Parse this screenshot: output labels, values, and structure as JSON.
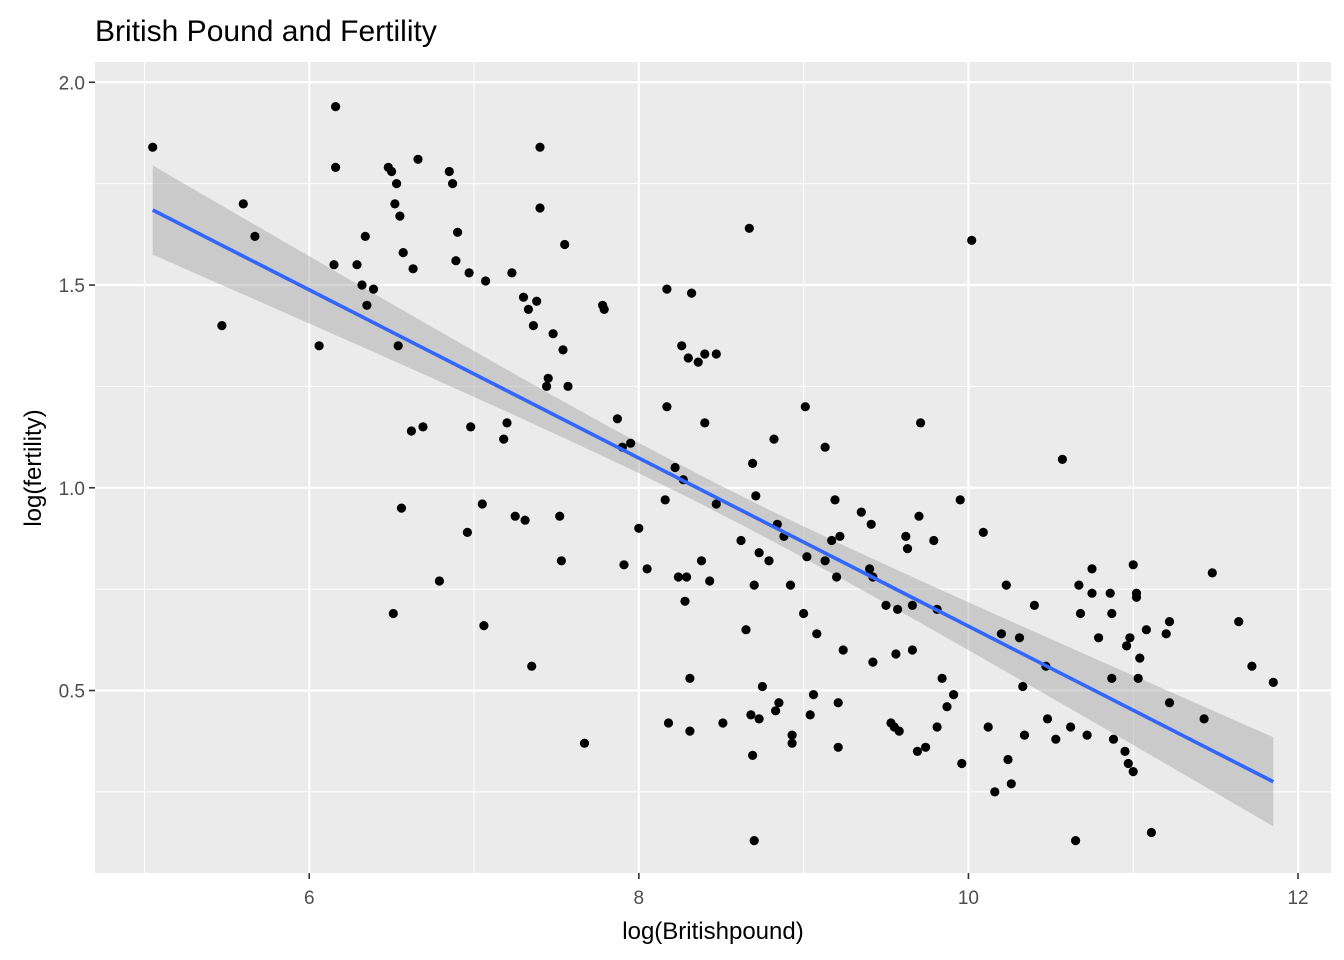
{
  "chart_data": {
    "type": "scatter",
    "title": "British Pound and Fertility",
    "xlabel": "log(Britishpound)",
    "ylabel": "log(fertility)",
    "xlim": [
      4.7,
      12.2
    ],
    "ylim": [
      0.05,
      2.05
    ],
    "x_ticks": [
      6,
      8,
      10,
      12
    ],
    "x_tick_labels": [
      "6",
      "8",
      "10",
      "12"
    ],
    "y_ticks": [
      0.5,
      1.0,
      1.5,
      2.0
    ],
    "y_tick_labels": [
      "0.5",
      "1.0",
      "1.5",
      "2.0"
    ],
    "grid": true,
    "legend": "none",
    "colors": {
      "panel_background": "#EBEBEB",
      "grid": "#FFFFFF",
      "points": "#000000",
      "fit_line": "#3366FF",
      "confidence_band": "#999999"
    },
    "series": [
      {
        "points": [
          [
            5.05,
            1.84
          ],
          [
            5.47,
            1.4
          ],
          [
            5.6,
            1.7
          ],
          [
            5.67,
            1.62
          ],
          [
            6.06,
            1.35
          ],
          [
            6.15,
            1.55
          ],
          [
            6.16,
            1.94
          ],
          [
            6.16,
            1.79
          ],
          [
            6.29,
            1.55
          ],
          [
            6.32,
            1.5
          ],
          [
            6.34,
            1.62
          ],
          [
            6.35,
            1.45
          ],
          [
            6.39,
            1.49
          ],
          [
            6.48,
            1.79
          ],
          [
            6.5,
            1.78
          ],
          [
            6.51,
            0.69
          ],
          [
            6.52,
            1.7
          ],
          [
            6.53,
            1.75
          ],
          [
            6.54,
            1.35
          ],
          [
            6.55,
            1.67
          ],
          [
            6.56,
            0.95
          ],
          [
            6.57,
            1.58
          ],
          [
            6.62,
            1.14
          ],
          [
            6.63,
            1.54
          ],
          [
            6.66,
            1.81
          ],
          [
            6.69,
            1.15
          ],
          [
            6.79,
            0.77
          ],
          [
            6.85,
            1.78
          ],
          [
            6.87,
            1.75
          ],
          [
            6.89,
            1.56
          ],
          [
            6.9,
            1.63
          ],
          [
            6.96,
            0.89
          ],
          [
            6.97,
            1.53
          ],
          [
            6.98,
            1.15
          ],
          [
            7.05,
            0.96
          ],
          [
            7.06,
            0.66
          ],
          [
            7.07,
            1.51
          ],
          [
            7.18,
            1.12
          ],
          [
            7.2,
            1.16
          ],
          [
            7.23,
            1.53
          ],
          [
            7.25,
            0.93
          ],
          [
            7.3,
            1.47
          ],
          [
            7.31,
            0.92
          ],
          [
            7.33,
            1.44
          ],
          [
            7.35,
            0.56
          ],
          [
            7.36,
            1.4
          ],
          [
            7.38,
            1.46
          ],
          [
            7.4,
            1.84
          ],
          [
            7.4,
            1.69
          ],
          [
            7.44,
            1.25
          ],
          [
            7.45,
            1.27
          ],
          [
            7.48,
            1.38
          ],
          [
            7.52,
            0.93
          ],
          [
            7.53,
            0.82
          ],
          [
            7.54,
            1.34
          ],
          [
            7.55,
            1.6
          ],
          [
            7.57,
            1.25
          ],
          [
            7.67,
            0.37
          ],
          [
            7.78,
            1.45
          ],
          [
            7.79,
            1.44
          ],
          [
            7.87,
            1.17
          ],
          [
            7.9,
            1.1
          ],
          [
            7.91,
            0.81
          ],
          [
            7.95,
            1.11
          ],
          [
            8.0,
            0.9
          ],
          [
            8.05,
            0.8
          ],
          [
            8.16,
            0.97
          ],
          [
            8.17,
            1.49
          ],
          [
            8.17,
            1.2
          ],
          [
            8.18,
            0.42
          ],
          [
            8.22,
            1.05
          ],
          [
            8.24,
            0.78
          ],
          [
            8.26,
            1.35
          ],
          [
            8.27,
            1.02
          ],
          [
            8.28,
            0.72
          ],
          [
            8.29,
            0.78
          ],
          [
            8.3,
            1.32
          ],
          [
            8.31,
            0.4
          ],
          [
            8.31,
            0.53
          ],
          [
            8.32,
            1.48
          ],
          [
            8.36,
            1.31
          ],
          [
            8.38,
            0.82
          ],
          [
            8.4,
            1.33
          ],
          [
            8.4,
            1.16
          ],
          [
            8.43,
            0.77
          ],
          [
            8.47,
            0.96
          ],
          [
            8.47,
            1.33
          ],
          [
            8.51,
            0.42
          ],
          [
            8.62,
            0.87
          ],
          [
            8.65,
            0.65
          ],
          [
            8.67,
            1.64
          ],
          [
            8.68,
            0.44
          ],
          [
            8.69,
            0.34
          ],
          [
            8.69,
            1.06
          ],
          [
            8.7,
            0.76
          ],
          [
            8.7,
            0.13
          ],
          [
            8.71,
            0.98
          ],
          [
            8.73,
            0.84
          ],
          [
            8.73,
            0.43
          ],
          [
            8.75,
            0.51
          ],
          [
            8.79,
            0.82
          ],
          [
            8.82,
            1.12
          ],
          [
            8.83,
            0.45
          ],
          [
            8.84,
            0.91
          ],
          [
            8.85,
            0.47
          ],
          [
            8.88,
            0.88
          ],
          [
            8.92,
            0.76
          ],
          [
            8.93,
            0.39
          ],
          [
            8.93,
            0.37
          ],
          [
            9.0,
            0.69
          ],
          [
            9.01,
            1.2
          ],
          [
            9.02,
            0.83
          ],
          [
            9.04,
            0.44
          ],
          [
            9.06,
            0.49
          ],
          [
            9.08,
            0.64
          ],
          [
            9.13,
            1.1
          ],
          [
            9.13,
            0.82
          ],
          [
            9.17,
            0.87
          ],
          [
            9.19,
            0.97
          ],
          [
            9.2,
            0.78
          ],
          [
            9.21,
            0.47
          ],
          [
            9.21,
            0.36
          ],
          [
            9.22,
            0.88
          ],
          [
            9.24,
            0.6
          ],
          [
            9.35,
            0.94
          ],
          [
            9.4,
            0.8
          ],
          [
            9.41,
            0.91
          ],
          [
            9.42,
            0.57
          ],
          [
            9.42,
            0.78
          ],
          [
            9.5,
            0.71
          ],
          [
            9.53,
            0.42
          ],
          [
            9.55,
            0.41
          ],
          [
            9.56,
            0.59
          ],
          [
            9.57,
            0.7
          ],
          [
            9.58,
            0.4
          ],
          [
            9.62,
            0.88
          ],
          [
            9.63,
            0.85
          ],
          [
            9.66,
            0.6
          ],
          [
            9.66,
            0.71
          ],
          [
            9.69,
            0.35
          ],
          [
            9.7,
            0.93
          ],
          [
            9.71,
            1.16
          ],
          [
            9.74,
            0.36
          ],
          [
            9.79,
            0.87
          ],
          [
            9.81,
            0.41
          ],
          [
            9.81,
            0.7
          ],
          [
            9.84,
            0.53
          ],
          [
            9.87,
            0.46
          ],
          [
            9.91,
            0.49
          ],
          [
            9.95,
            0.97
          ],
          [
            9.96,
            0.32
          ],
          [
            10.02,
            1.61
          ],
          [
            10.09,
            0.89
          ],
          [
            10.12,
            0.41
          ],
          [
            10.16,
            0.25
          ],
          [
            10.2,
            0.64
          ],
          [
            10.23,
            0.76
          ],
          [
            10.24,
            0.33
          ],
          [
            10.26,
            0.27
          ],
          [
            10.31,
            0.63
          ],
          [
            10.33,
            0.51
          ],
          [
            10.34,
            0.39
          ],
          [
            10.4,
            0.71
          ],
          [
            10.47,
            0.56
          ],
          [
            10.48,
            0.43
          ],
          [
            10.53,
            0.38
          ],
          [
            10.57,
            1.07
          ],
          [
            10.62,
            0.41
          ],
          [
            10.65,
            0.13
          ],
          [
            10.67,
            0.76
          ],
          [
            10.68,
            0.69
          ],
          [
            10.72,
            0.39
          ],
          [
            10.75,
            0.8
          ],
          [
            10.75,
            0.74
          ],
          [
            10.79,
            0.63
          ],
          [
            10.86,
            0.74
          ],
          [
            10.87,
            0.69
          ],
          [
            10.87,
            0.53
          ],
          [
            10.88,
            0.38
          ],
          [
            10.95,
            0.35
          ],
          [
            10.96,
            0.61
          ],
          [
            10.97,
            0.32
          ],
          [
            10.98,
            0.63
          ],
          [
            11.0,
            0.3
          ],
          [
            11.0,
            0.81
          ],
          [
            11.02,
            0.74
          ],
          [
            11.02,
            0.73
          ],
          [
            11.03,
            0.53
          ],
          [
            11.04,
            0.58
          ],
          [
            11.08,
            0.65
          ],
          [
            11.11,
            0.15
          ],
          [
            11.2,
            0.64
          ],
          [
            11.22,
            0.67
          ],
          [
            11.22,
            0.47
          ],
          [
            11.43,
            0.43
          ],
          [
            11.48,
            0.79
          ],
          [
            11.64,
            0.67
          ],
          [
            11.72,
            0.56
          ],
          [
            11.85,
            0.52
          ]
        ]
      }
    ],
    "fit": {
      "type": "linear",
      "x": [
        5.05,
        11.85
      ],
      "y": [
        1.685,
        0.275
      ],
      "ci_low": [
        1.575,
        0.18
      ],
      "ci_high": [
        1.795,
        0.37
      ]
    }
  }
}
